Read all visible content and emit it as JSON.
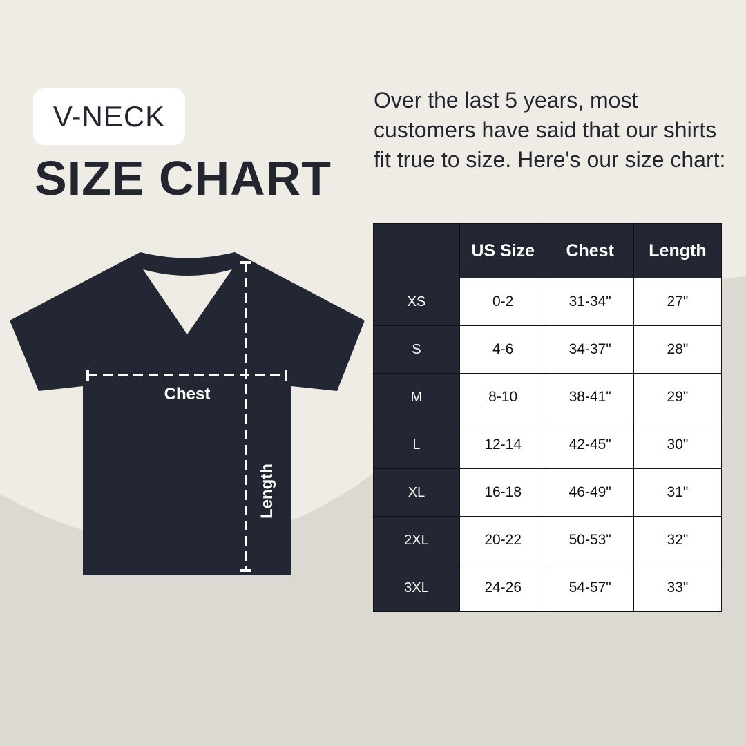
{
  "header": {
    "style_label": "V-NECK",
    "title": "SIZE CHART"
  },
  "intro": "Over the last 5 years, most customers have said that our shirts fit true to size. Here's our size chart:",
  "diagram": {
    "chest_label": "Chest",
    "length_label": "Length",
    "shirt_color": "#232733"
  },
  "colors": {
    "background": "#efebe5",
    "background_wave": "#dcd8d2",
    "dark": "#232733"
  },
  "table": {
    "headers": [
      "",
      "US Size",
      "Chest",
      "Length"
    ],
    "rows": [
      [
        "XS",
        "0-2",
        "31-34\"",
        "27\""
      ],
      [
        "S",
        "4-6",
        "34-37\"",
        "28\""
      ],
      [
        "M",
        "8-10",
        "38-41\"",
        "29\""
      ],
      [
        "L",
        "12-14",
        "42-45\"",
        "30\""
      ],
      [
        "XL",
        "16-18",
        "46-49\"",
        "31\""
      ],
      [
        "2XL",
        "20-22",
        "50-53\"",
        "32\""
      ],
      [
        "3XL",
        "24-26",
        "54-57\"",
        "33\""
      ]
    ]
  }
}
